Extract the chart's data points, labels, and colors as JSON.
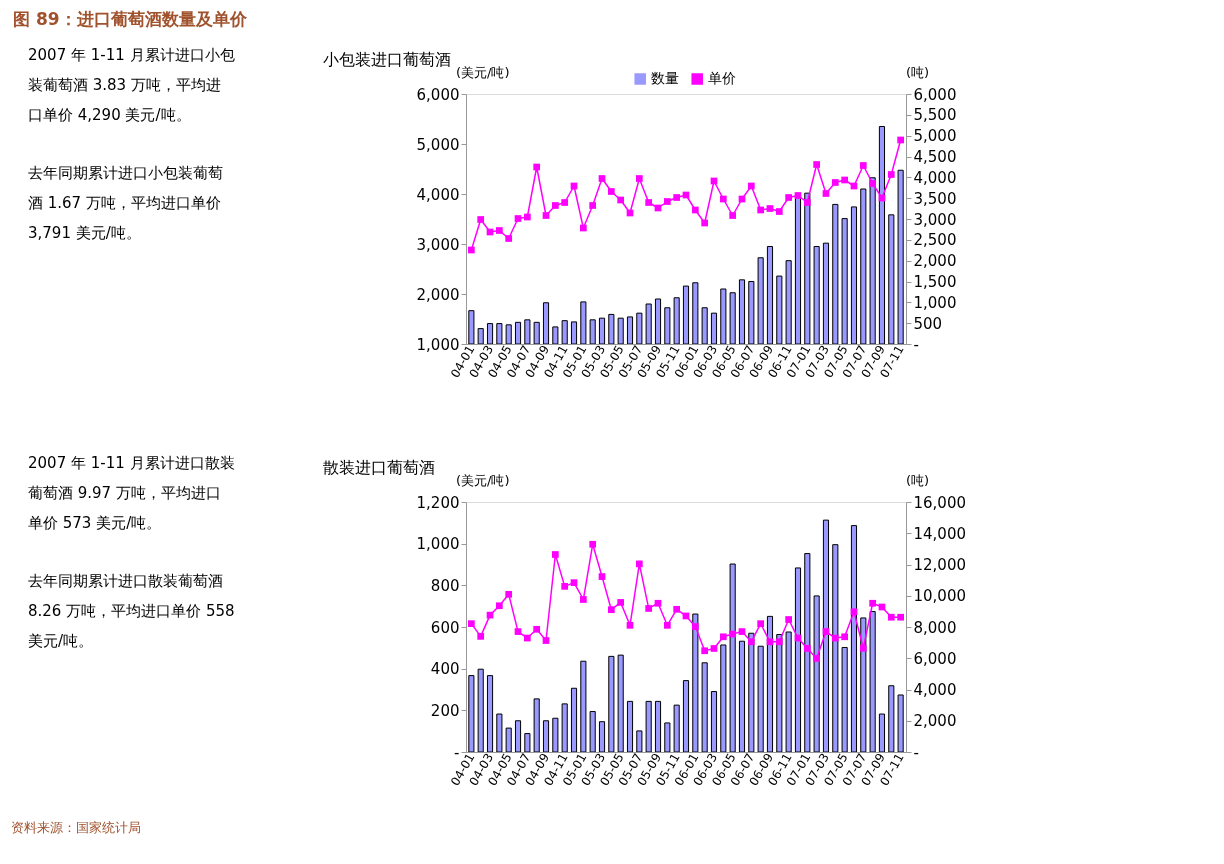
{
  "chart_data": [
    {
      "type": "bar",
      "subtitle": "小包装进口葡萄酒",
      "ylabel": "(美元/吨)",
      "y2label": "(吨)",
      "annotations": [
        "图 89：进口葡萄酒数量及单价",
        "2007 年 1-11 月累计进口小包装葡萄酒 3.83 万吨，平均进口单价 4,290 美元/吨。",
        "去年同期累计进口小包装葡萄酒 1.67 万吨，平均进口单价 3,791 美元/吨。"
      ],
      "categories": [
        "04-01",
        null,
        "04-03",
        null,
        "04-05",
        null,
        "04-07",
        null,
        "04-09",
        null,
        "04-11",
        null,
        "05-01",
        null,
        "05-03",
        null,
        "05-05",
        null,
        "05-07",
        null,
        "05-09",
        null,
        "05-11",
        null,
        "06-01",
        null,
        "06-03",
        null,
        "06-05",
        null,
        "06-07",
        null,
        "06-09",
        null,
        "06-11",
        null,
        "07-01",
        null,
        "07-03",
        null,
        "07-05",
        null,
        "07-07",
        null,
        "07-09",
        null,
        "07-11"
      ],
      "series": [
        {
          "name": "数量",
          "axis": "y2",
          "color": "#9999ff",
          "values": [
            800,
            370,
            490,
            490,
            460,
            520,
            580,
            520,
            990,
            410,
            560,
            530,
            1010,
            580,
            620,
            710,
            620,
            650,
            740,
            960,
            1080,
            870,
            1110,
            1390,
            1470,
            870,
            740,
            1320,
            1230,
            1540,
            1500,
            2070,
            2340,
            1630,
            2000,
            3560,
            3620,
            2340,
            2420,
            3350,
            3010,
            3290,
            3720,
            3990,
            5220,
            3100,
            4170
          ]
        },
        {
          "name": "单价",
          "type": "line",
          "color": "#ff00ff",
          "values": [
            2880,
            3490,
            3240,
            3270,
            3110,
            3510,
            3540,
            4540,
            3570,
            3770,
            3830,
            4160,
            3320,
            3770,
            4310,
            4050,
            3880,
            3620,
            4310,
            3830,
            3720,
            3850,
            3930,
            3980,
            3680,
            3420,
            4260,
            3900,
            3570,
            3900,
            4160,
            3680,
            3710,
            3650,
            3930,
            3970,
            3830,
            4590,
            4010,
            4230,
            4280,
            4160,
            4570,
            4210,
            3920,
            4390,
            5080
          ]
        }
      ],
      "ylim": [
        1000,
        6000
      ],
      "yticks": [
        {
          "value": 1000,
          "label": "1,000"
        },
        {
          "value": 2000,
          "label": "2,000"
        },
        {
          "value": 3000,
          "label": "3,000"
        },
        {
          "value": 4000,
          "label": "4,000"
        },
        {
          "value": 5000,
          "label": "5,000"
        },
        {
          "value": 6000,
          "label": "6,000"
        }
      ],
      "y2lim": [
        0,
        6000
      ],
      "y2ticks": [
        {
          "value": 0,
          "label": "-"
        },
        500,
        {
          "value": 1000,
          "label": "1,000"
        },
        {
          "value": 1500,
          "label": "1,500"
        },
        {
          "value": 2000,
          "label": "2,000"
        },
        {
          "value": 2500,
          "label": "2,500"
        },
        {
          "value": 3000,
          "label": "3,000"
        },
        {
          "value": 3500,
          "label": "3,500"
        },
        {
          "value": 4000,
          "label": "4,000"
        },
        {
          "value": 4500,
          "label": "4,500"
        },
        {
          "value": 5000,
          "label": "5,000"
        },
        {
          "value": 5500,
          "label": "5,500"
        },
        {
          "value": 6000,
          "label": "6,000"
        }
      ],
      "legend": "top",
      "marker": "square",
      "line_style": "solid",
      "grid": false
    },
    {
      "type": "bar",
      "subtitle": "散装进口葡萄酒",
      "ylabel": "(美元/吨)",
      "y2label": "(吨)",
      "annotations": [
        "2007 年 1-11 月累计进口散装葡萄酒 9.97 万吨，平均进口单价 573 美元/吨。",
        "去年同期累计进口散装葡萄酒 8.26 万吨，平均进口单价 558 美元/吨。",
        "资料来源：国家统计局"
      ],
      "categories": [
        "04-01",
        null,
        "04-03",
        null,
        "04-05",
        null,
        "04-07",
        null,
        "04-09",
        null,
        "04-11",
        null,
        "05-01",
        null,
        "05-03",
        null,
        "05-05",
        null,
        "05-07",
        null,
        "05-09",
        null,
        "05-11",
        null,
        "06-01",
        null,
        "06-03",
        null,
        "06-05",
        null,
        "06-07",
        null,
        "06-09",
        null,
        "06-11",
        null,
        "07-01",
        null,
        "07-03",
        null,
        "07-05",
        null,
        "07-07",
        null,
        "07-09",
        null,
        "07-11"
      ],
      "series": [
        {
          "name": "数量",
          "axis": "y2",
          "color": "#9999ff",
          "values": [
            4890,
            5300,
            4890,
            2430,
            1530,
            2000,
            1180,
            3400,
            2000,
            2160,
            3080,
            4080,
            5810,
            2590,
            1940,
            6120,
            6200,
            3240,
            1350,
            3240,
            3240,
            1860,
            3000,
            4570,
            8830,
            5710,
            3870,
            6850,
            12030,
            7090,
            7600,
            6770,
            8680,
            7520,
            7680,
            11780,
            12700,
            9990,
            14840,
            13270,
            6690,
            14490,
            8580,
            8990,
            2430,
            4240,
            3650
          ]
        },
        {
          "name": "单价",
          "type": "line",
          "color": "#ff00ff",
          "values": [
            616,
            555,
            657,
            702,
            757,
            578,
            547,
            589,
            535,
            948,
            795,
            813,
            732,
            997,
            842,
            683,
            718,
            608,
            903,
            689,
            714,
            608,
            685,
            653,
            602,
            486,
            497,
            553,
            566,
            578,
            529,
            616,
            529,
            529,
            636,
            547,
            497,
            449,
            578,
            547,
            553,
            673,
            498,
            714,
            696,
            647,
            647
          ]
        }
      ],
      "ylim": [
        0,
        1200
      ],
      "yticks": [
        {
          "value": 0,
          "label": "-"
        },
        200,
        400,
        600,
        800,
        {
          "value": 1000,
          "label": "1,000"
        },
        {
          "value": 1200,
          "label": "1,200"
        }
      ],
      "y2lim": [
        0,
        16000
      ],
      "y2ticks": [
        {
          "value": 0,
          "label": "-"
        },
        {
          "value": 2000,
          "label": "2,000"
        },
        {
          "value": 4000,
          "label": "4,000"
        },
        {
          "value": 6000,
          "label": "6,000"
        },
        {
          "value": 8000,
          "label": "8,000"
        },
        {
          "value": 10000,
          "label": "10,000"
        },
        {
          "value": 12000,
          "label": "12,000"
        },
        {
          "value": 14000,
          "label": "14,000"
        },
        {
          "value": 16000,
          "label": "16,000"
        }
      ],
      "legend": "top",
      "marker": "square",
      "line_style": "solid",
      "grid": false
    }
  ]
}
